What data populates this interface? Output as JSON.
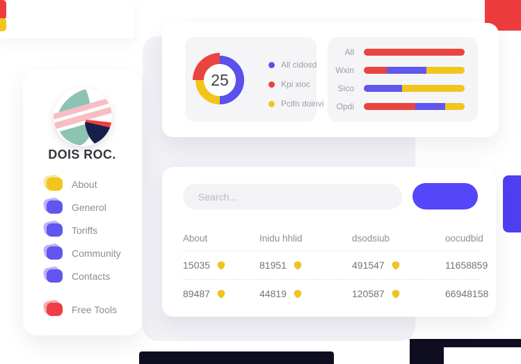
{
  "brand": {
    "title": "DOIS ROC."
  },
  "sidebar": {
    "items": [
      {
        "label": "About",
        "color": "#f2c51e",
        "spaced": false
      },
      {
        "label": "Generol",
        "color": "#6156ee",
        "spaced": false
      },
      {
        "label": "Toriffs",
        "color": "#6156ee",
        "spaced": false
      },
      {
        "label": "Community",
        "color": "#6156ee",
        "spaced": false
      },
      {
        "label": "Contacts",
        "color": "#6156ee",
        "spaced": false
      },
      {
        "label": "Free Tools",
        "color": "#ee3d45",
        "spaced": true
      }
    ]
  },
  "logo_colors": {
    "teal": "#8dc3b2",
    "pink": "#f8bdc3",
    "navy": "#14204b",
    "red": "#ef3e3e",
    "stripe": "#ffffff"
  },
  "donut": {
    "center_value": "25",
    "segments": [
      {
        "label": "All cidosd",
        "color": "#5b50ee",
        "pct": 50,
        "r": 29,
        "w": 12
      },
      {
        "label": "Pcifn doinvi",
        "color": "#f2c51d",
        "pct": 25,
        "r": 29,
        "w": 12
      },
      {
        "label": "Kpi xioc",
        "color": "#ea4440",
        "pct": 25,
        "r": 31,
        "w": 16
      }
    ],
    "legend": [
      {
        "label": "All cidosd",
        "color": "#5b50ee"
      },
      {
        "label": "Kpi xioc",
        "color": "#ea4440"
      },
      {
        "label": "Pcifn doinvi",
        "color": "#f2c51d"
      }
    ]
  },
  "bars": {
    "rows": [
      {
        "label": "All",
        "segments": [
          {
            "color": "#ea4440",
            "pct": 100
          }
        ]
      },
      {
        "label": "Wxin",
        "segments": [
          {
            "color": "#ea4440",
            "pct": 23
          },
          {
            "color": "#6156ee",
            "pct": 39
          },
          {
            "color": "#f2c51d",
            "pct": 38
          }
        ]
      },
      {
        "label": "Sico",
        "segments": [
          {
            "color": "#6156ee",
            "pct": 38
          },
          {
            "color": "#f2c51d",
            "pct": 62
          }
        ]
      },
      {
        "label": "Opdi",
        "segments": [
          {
            "color": "#ea4440",
            "pct": 51
          },
          {
            "color": "#6156ee",
            "pct": 30
          },
          {
            "color": "#f2c51d",
            "pct": 19
          }
        ]
      }
    ]
  },
  "table": {
    "search_placeholder": "Search...",
    "headers": [
      "About",
      "Inidu hhlid",
      "dsodsiub",
      "oocudbid"
    ],
    "rows": [
      [
        {
          "value": "15035",
          "icon": true
        },
        {
          "value": "81951",
          "icon": true
        },
        {
          "value": "491547",
          "icon": true
        },
        {
          "value": "11658859",
          "icon": false
        }
      ],
      [
        {
          "value": "89487",
          "icon": true
        },
        {
          "value": "44819",
          "icon": true
        },
        {
          "value": "120587",
          "icon": true
        },
        {
          "value": "66948158",
          "icon": false
        }
      ]
    ],
    "icon_color": "#f0c320"
  },
  "decor_colors": {
    "red": "#ee3c3c",
    "yellow": "#f2c51d",
    "blue": "#4f3ff0",
    "dark": "#0e0e20"
  },
  "chart_data": [
    {
      "type": "pie",
      "title": "",
      "center_label": "25",
      "slices": [
        {
          "label": "All cidosd",
          "value": 50
        },
        {
          "label": "Kpi xioc",
          "value": 25
        },
        {
          "label": "Pcifn doinvi",
          "value": 25
        }
      ],
      "legend_position": "right"
    },
    {
      "type": "bar",
      "orientation": "horizontal",
      "stacked": true,
      "categories": [
        "All",
        "Wxin",
        "Sico",
        "Opdi"
      ],
      "series": [
        {
          "name": "Kpi xioc (red)",
          "values": [
            100,
            23,
            0,
            51
          ]
        },
        {
          "name": "All cidosd (blue)",
          "values": [
            0,
            39,
            38,
            30
          ]
        },
        {
          "name": "Pcifn doinvi (yellow)",
          "values": [
            0,
            38,
            62,
            19
          ]
        }
      ],
      "xlim": [
        0,
        100
      ]
    }
  ]
}
